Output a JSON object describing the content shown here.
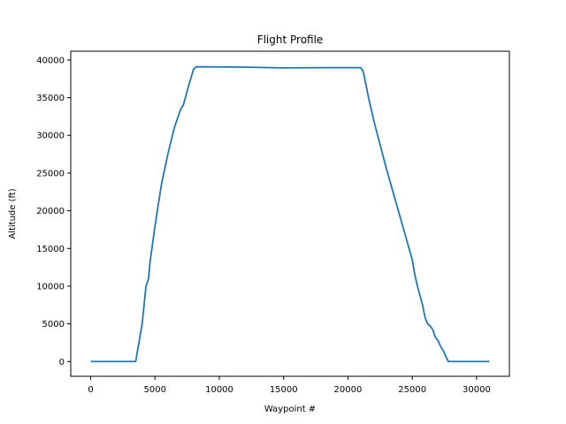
{
  "chart_data": {
    "type": "line",
    "title": "Flight Profile",
    "xlabel": "Waypoint #",
    "ylabel": "Altitude (ft)",
    "xlim": [
      -1550,
      32550
    ],
    "ylim": [
      -1960,
      41160
    ],
    "xticks": [
      0,
      5000,
      10000,
      15000,
      20000,
      25000,
      30000
    ],
    "yticks": [
      0,
      5000,
      10000,
      15000,
      20000,
      25000,
      30000,
      35000,
      40000
    ],
    "xtick_labels": [
      "0",
      "5000",
      "10000",
      "15000",
      "20000",
      "25000",
      "30000"
    ],
    "ytick_labels": [
      "0",
      "5000",
      "10000",
      "15000",
      "20000",
      "25000",
      "30000",
      "35000",
      "40000"
    ],
    "grid": false,
    "colors": {
      "line": "#1f77b4",
      "axes": "#000000",
      "background": "#ffffff"
    },
    "series": [
      {
        "x": [
          0,
          3500,
          3700,
          4000,
          4300,
          4500,
          4600,
          5000,
          5500,
          6000,
          6500,
          7000,
          7200,
          7600,
          8000,
          8200,
          12000,
          15000,
          18000,
          21000,
          21200,
          21600,
          22000,
          23000,
          24000,
          25000,
          25200,
          25400,
          25800,
          26000,
          26200,
          26400,
          26600,
          26800,
          27000,
          27200,
          27400,
          27600,
          27800,
          28000,
          29000,
          31000
        ],
        "y": [
          0,
          0,
          2000,
          5000,
          10000,
          11000,
          13000,
          18000,
          23500,
          27500,
          31000,
          33500,
          34000,
          36500,
          38800,
          39100,
          39050,
          38950,
          38980,
          38980,
          38400,
          35000,
          32000,
          25500,
          19500,
          13500,
          11500,
          10000,
          7500,
          5800,
          5000,
          4700,
          4200,
          3200,
          2800,
          2000,
          1500,
          700,
          0,
          0,
          0,
          0
        ]
      }
    ]
  }
}
